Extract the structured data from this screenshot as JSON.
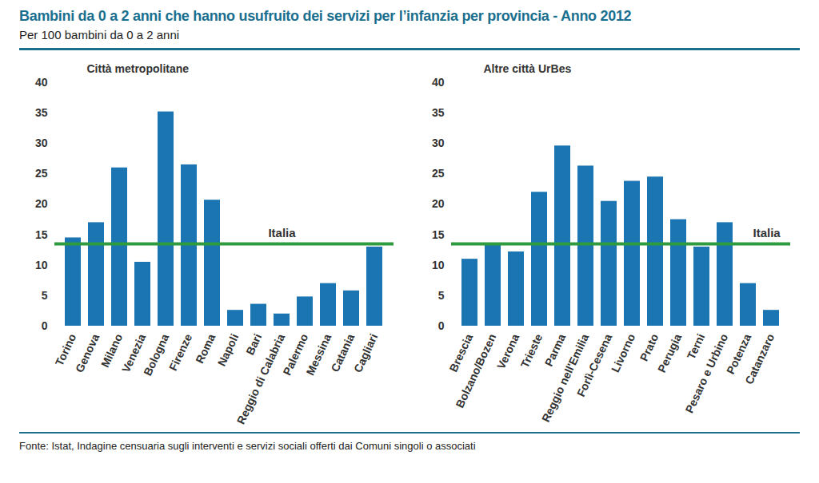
{
  "title": "Bambini da 0 a 2 anni che hanno usufruito dei servizi per l’infanzia per provincia - Anno 2012",
  "subtitle": "Per 100 bambini da 0 a 2 anni",
  "source": "Fonte: Istat, Indagine censuaria sugli interventi e servizi sociali offerti dai Comuni singoli o associati",
  "chart_data": [
    {
      "type": "bar",
      "title": "Città metropolitane",
      "categories": [
        "Torino",
        "Genova",
        "Milano",
        "Venezia",
        "Bologna",
        "Firenze",
        "Roma",
        "Napoli",
        "Bari",
        "Reggio di Calabria",
        "Palermo",
        "Messina",
        "Catania",
        "Cagliari"
      ],
      "values": [
        14.5,
        17,
        26,
        10.5,
        35.2,
        26.5,
        20.7,
        2.6,
        3.6,
        2,
        4.8,
        7,
        5.8,
        13
      ],
      "color": "#1b75b3",
      "reference": {
        "label": "Italia",
        "value": 13.5,
        "color": "#2e9b3f"
      },
      "ylim": [
        0,
        40
      ],
      "yticks": [
        0,
        5,
        10,
        15,
        20,
        25,
        30,
        35,
        40
      ],
      "grid": false
    },
    {
      "type": "bar",
      "title": "Altre città UrBes",
      "categories": [
        "Brescia",
        "Bolzano/Bozen",
        "Verona",
        "Trieste",
        "Parma",
        "Reggio nell'Emilia",
        "Forlì-Cesena",
        "Livorno",
        "Prato",
        "Perugia",
        "Terni",
        "Pesaro e Urbino",
        "Potenza",
        "Catanzaro"
      ],
      "values": [
        11,
        13.5,
        12.2,
        22,
        29.6,
        26.3,
        20.5,
        23.8,
        24.5,
        17.5,
        13,
        17,
        7,
        2.6
      ],
      "color": "#1b75b3",
      "reference": {
        "label": "Italia",
        "value": 13.5,
        "color": "#2e9b3f"
      },
      "ylim": [
        0,
        40
      ],
      "yticks": [
        0,
        5,
        10,
        15,
        20,
        25,
        30,
        35,
        40
      ],
      "grid": false
    }
  ]
}
